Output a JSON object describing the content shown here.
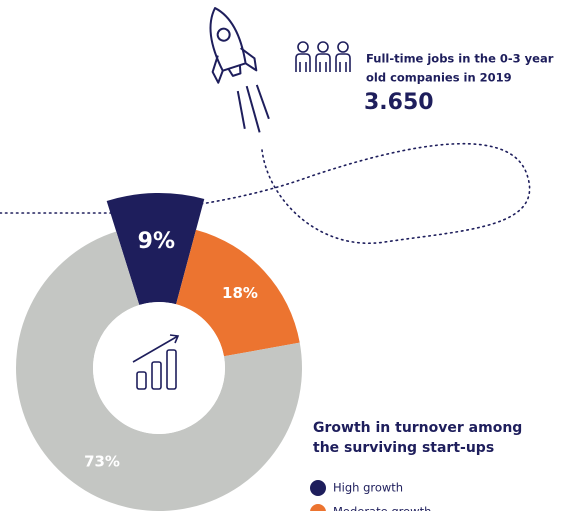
{
  "chart_data": {
    "type": "donut",
    "title_lines": [
      "Growth in turnover among",
      "the surviving start-ups"
    ],
    "categories": [
      "High growth",
      "Moderate growth",
      null
    ],
    "values": [
      9,
      18,
      73
    ],
    "value_labels": [
      "9%",
      "18%",
      "73%"
    ],
    "colors": [
      "#1e1e5c",
      "#ec7430",
      "#c4c6c3"
    ],
    "legend": "bottom-right"
  },
  "stat": {
    "label_lines": [
      "Full-time jobs in the 0-3 year",
      "old companies in 2019"
    ],
    "value": "3.650"
  }
}
